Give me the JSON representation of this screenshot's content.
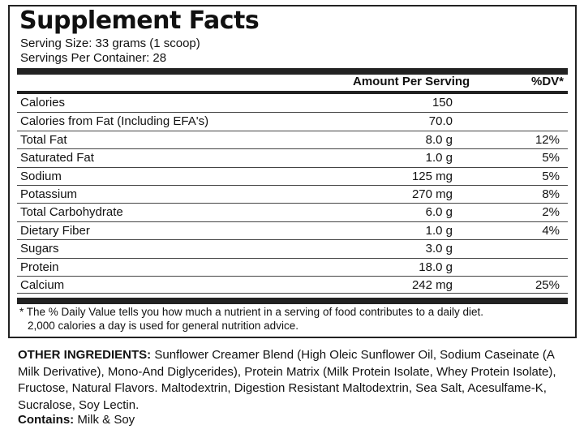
{
  "title": "Supplement Facts",
  "serving_size": "Serving Size: 33 grams (1 scoop)",
  "servings_per_container": "Servings Per Container: 28",
  "header": {
    "amount": "Amount Per Serving",
    "dv": "%DV*"
  },
  "rows": [
    {
      "name": "Calories",
      "amount": "150",
      "dv": ""
    },
    {
      "name": "Calories from Fat (Including EFA's)",
      "amount": "70.0",
      "dv": ""
    },
    {
      "name": "Total Fat",
      "amount": "8.0 g",
      "dv": "12%"
    },
    {
      "name": "Saturated Fat",
      "amount": "1.0 g",
      "dv": "5%"
    },
    {
      "name": "Sodium",
      "amount": "125 mg",
      "dv": "5%"
    },
    {
      "name": "Potassium",
      "amount": "270 mg",
      "dv": "8%"
    },
    {
      "name": "Total Carbohydrate",
      "amount": "6.0 g",
      "dv": "2%"
    },
    {
      "name": "Dietary Fiber",
      "amount": "1.0 g",
      "dv": "4%"
    },
    {
      "name": "Sugars",
      "amount": "3.0 g",
      "dv": ""
    },
    {
      "name": "Protein",
      "amount": "18.0 g",
      "dv": ""
    },
    {
      "name": "Calcium",
      "amount": "242 mg",
      "dv": "25%"
    }
  ],
  "footnote": {
    "line1": "* The % Daily Value tells you how much a nutrient in a serving of food contributes to a daily diet.",
    "line2": "2,000 calories a day is used for general nutrition advice."
  },
  "other_ingredients": {
    "label": "OTHER INGREDIENTS:",
    "text": " Sunflower Creamer Blend (High Oleic Sunflower Oil, Sodium Caseinate (A Milk Derivative), Mono-And Diglycerides), Protein Matrix (Milk Protein Isolate, Whey Protein Isolate), Fructose, Natural Flavors. Maltodextrin, Digestion Resistant Maltodextrin, Sea Salt, Acesulfame-K, Sucralose, Soy Lectin."
  },
  "contains": {
    "label": "Contains:",
    "text": " Milk & Soy"
  }
}
